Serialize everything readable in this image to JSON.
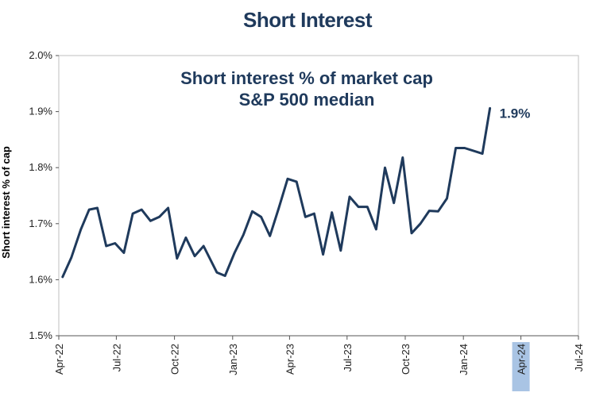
{
  "chart_data": {
    "type": "line",
    "title": "Short Interest",
    "annotation_lines": [
      "Short interest % of market cap",
      "S&P 500 median"
    ],
    "ylabel": "Short interest % of cap",
    "xlabel": "",
    "ylim": [
      1.5,
      2.0
    ],
    "yticks": [
      "1.5%",
      "1.6%",
      "1.7%",
      "1.8%",
      "1.9%",
      "2.0%"
    ],
    "yticks_values": [
      1.5,
      1.6,
      1.7,
      1.8,
      1.9,
      2.0
    ],
    "xlim": [
      "2022-04-01",
      "2024-07-01"
    ],
    "xticks": [
      "Apr-22",
      "Jul-22",
      "Oct-22",
      "Jan-23",
      "Apr-23",
      "Jul-23",
      "Oct-23",
      "Jan-24",
      "Apr-24",
      "Jul-24"
    ],
    "xticks_dates": [
      "2022-04-01",
      "2022-07-01",
      "2022-10-01",
      "2023-01-01",
      "2023-04-01",
      "2023-07-01",
      "2023-10-01",
      "2024-01-01",
      "2024-04-01",
      "2024-07-01"
    ],
    "highlighted_xtick": "Apr-24",
    "end_label": "1.9%",
    "grid": false,
    "legend": "none",
    "colors": {
      "line": "#1f3a5c",
      "highlight": "#a9c4e4",
      "text": "#1f3a5c"
    },
    "series": [
      {
        "values": [
          [
            "2022-04-07",
            1.605
          ],
          [
            "2022-04-21",
            1.64
          ],
          [
            "2022-05-06",
            1.69
          ],
          [
            "2022-05-19",
            1.725
          ],
          [
            "2022-06-01",
            1.728
          ],
          [
            "2022-06-15",
            1.66
          ],
          [
            "2022-06-29",
            1.665
          ],
          [
            "2022-07-13",
            1.648
          ],
          [
            "2022-07-27",
            1.718
          ],
          [
            "2022-08-10",
            1.725
          ],
          [
            "2022-08-24",
            1.705
          ],
          [
            "2022-09-07",
            1.712
          ],
          [
            "2022-09-21",
            1.728
          ],
          [
            "2022-10-05",
            1.638
          ],
          [
            "2022-10-19",
            1.675
          ],
          [
            "2022-11-02",
            1.642
          ],
          [
            "2022-11-16",
            1.66
          ],
          [
            "2022-12-07",
            1.613
          ],
          [
            "2022-12-20",
            1.607
          ],
          [
            "2023-01-04",
            1.648
          ],
          [
            "2023-01-18",
            1.68
          ],
          [
            "2023-02-01",
            1.722
          ],
          [
            "2023-02-15",
            1.712
          ],
          [
            "2023-03-01",
            1.678
          ],
          [
            "2023-03-15",
            1.728
          ],
          [
            "2023-03-29",
            1.78
          ],
          [
            "2023-04-12",
            1.775
          ],
          [
            "2023-04-26",
            1.712
          ],
          [
            "2023-05-10",
            1.718
          ],
          [
            "2023-05-24",
            1.645
          ],
          [
            "2023-06-07",
            1.72
          ],
          [
            "2023-06-21",
            1.652
          ],
          [
            "2023-07-05",
            1.748
          ],
          [
            "2023-07-19",
            1.73
          ],
          [
            "2023-08-02",
            1.73
          ],
          [
            "2023-08-16",
            1.69
          ],
          [
            "2023-08-30",
            1.8
          ],
          [
            "2023-09-13",
            1.737
          ],
          [
            "2023-09-27",
            1.818
          ],
          [
            "2023-10-11",
            1.683
          ],
          [
            "2023-10-25",
            1.7
          ],
          [
            "2023-11-08",
            1.723
          ],
          [
            "2023-11-22",
            1.722
          ],
          [
            "2023-12-06",
            1.745
          ],
          [
            "2023-12-20",
            1.835
          ],
          [
            "2024-01-03",
            1.835
          ],
          [
            "2024-01-31",
            1.825
          ],
          [
            "2024-02-12",
            1.906
          ]
        ]
      }
    ]
  }
}
